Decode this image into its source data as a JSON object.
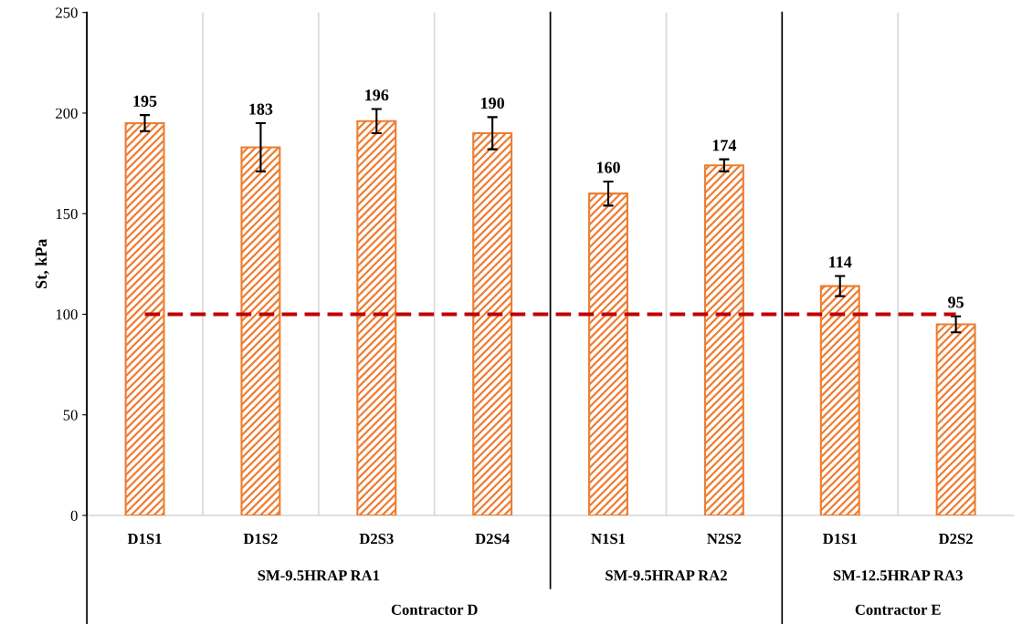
{
  "chart_data": {
    "type": "bar",
    "ylabel": "St, kPa",
    "categories": [
      "D1S1",
      "D1S2",
      "D2S3",
      "D2S4",
      "N1S1",
      "N2S2",
      "D1S1",
      "D2S2"
    ],
    "values": [
      195,
      183,
      196,
      190,
      160,
      174,
      114,
      95
    ],
    "errors": [
      4,
      12,
      6,
      8,
      6,
      3,
      5,
      4
    ],
    "color": "#ed7d31",
    "data_labels": true,
    "ylim": [
      0,
      250
    ],
    "yticks": [
      0,
      50,
      100,
      150,
      200,
      250
    ],
    "grid": "x",
    "ref_lines": [
      {
        "axis": "y",
        "value": 100,
        "label": null,
        "color": "#c00000",
        "line_style": "dashed"
      }
    ],
    "annotations": [
      "SM-9.5HRAP RA1",
      "SM-9.5HRAP RA2",
      "SM-12.5HRAP RA3",
      "Contractor D",
      "Contractor E"
    ]
  }
}
